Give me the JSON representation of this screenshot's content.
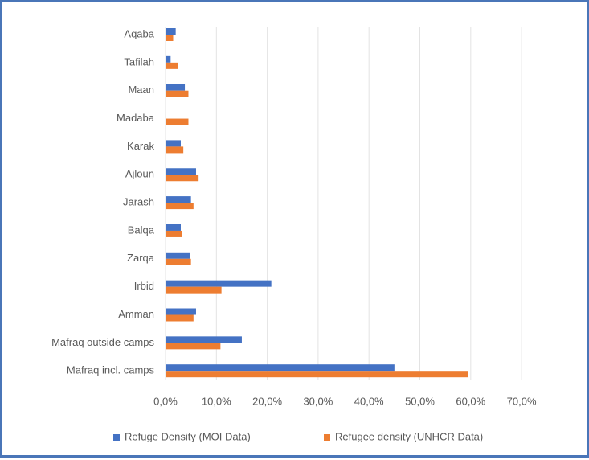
{
  "chart_data": {
    "type": "bar",
    "orientation": "horizontal",
    "title": "",
    "xlabel": "",
    "ylabel": "",
    "categories": [
      "Aqaba",
      "Tafilah",
      "Maan",
      "Madaba",
      "Karak",
      "Ajloun",
      "Jarash",
      "Balqa",
      "Zarqa",
      "Irbid",
      "Amman",
      "Mafraq outside camps",
      "Mafraq incl. camps"
    ],
    "series": [
      {
        "name": "Refuge Density (MOI Data)",
        "color": "#4472c4",
        "values": [
          2.0,
          1.0,
          3.8,
          0.0,
          3.0,
          6.0,
          5.0,
          3.0,
          4.8,
          20.8,
          6.0,
          15.0,
          45.0
        ]
      },
      {
        "name": "Refugee density (UNHCR Data)",
        "color": "#ed7d31",
        "values": [
          1.5,
          2.5,
          4.5,
          4.5,
          3.5,
          6.5,
          5.5,
          3.3,
          5.0,
          11.0,
          5.5,
          10.8,
          59.5
        ]
      }
    ],
    "xlim": [
      0,
      70
    ],
    "xticks": [
      "0,0%",
      "10,0%",
      "20,0%",
      "30,0%",
      "40,0%",
      "50,0%",
      "60,0%",
      "70,0%"
    ],
    "grid": "vertical",
    "legend_position": "bottom"
  }
}
